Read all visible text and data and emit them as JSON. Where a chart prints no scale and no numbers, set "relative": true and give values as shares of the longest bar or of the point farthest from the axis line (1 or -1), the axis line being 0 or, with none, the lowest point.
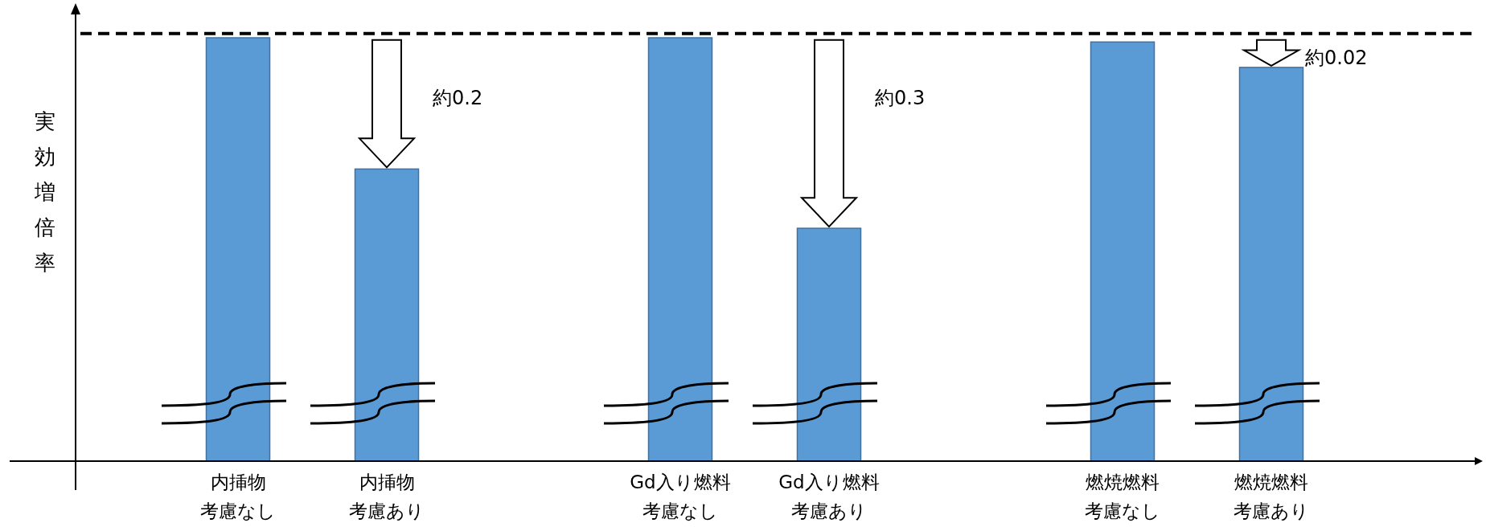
{
  "chart_data": {
    "type": "bar",
    "relative": true,
    "ylabel": "実効増倍率",
    "categories": [
      "内挿物考慮なし",
      "内挿物考慮あり",
      "Gd入り燃料考慮なし",
      "Gd入り燃料考慮あり",
      "燃焼燃料考慮なし",
      "燃焼燃料考慮あり"
    ],
    "values": [
      1,
      0.69,
      1,
      0.55,
      0.99,
      0.93
    ],
    "color": "#5b9bd5",
    "ref_lines": [
      {
        "axis": "y",
        "value": 1.01,
        "line_style": "dashed",
        "color": "#000000"
      }
    ],
    "annotations": [
      "約0.2",
      "約0.3",
      "約0.02"
    ],
    "legend": false
  }
}
